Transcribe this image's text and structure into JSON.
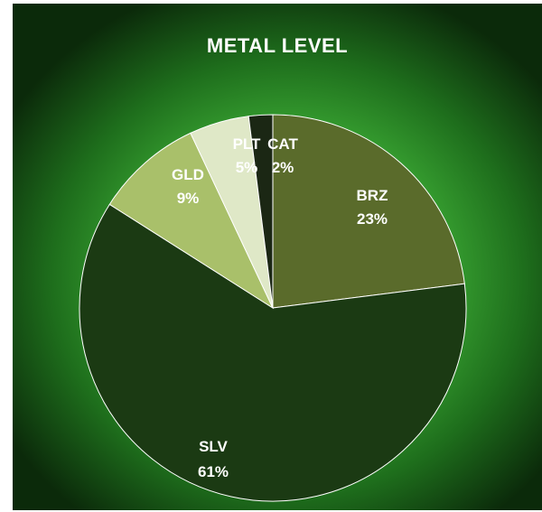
{
  "chart_data": {
    "type": "pie",
    "title": "METAL LEVEL",
    "categories": [
      "BRZ",
      "SLV",
      "GLD",
      "PLT",
      "CAT"
    ],
    "values": [
      23,
      61,
      9,
      5,
      2
    ],
    "labels": [
      "23%",
      "61%",
      "9%",
      "5%",
      "2%"
    ],
    "colors": [
      "#5a6b2b",
      "#1b3a13",
      "#a9c06a",
      "#dfe8c7",
      "#1b2714"
    ],
    "start_angle_deg": 90,
    "direction": "clockwise",
    "legend": "none"
  }
}
